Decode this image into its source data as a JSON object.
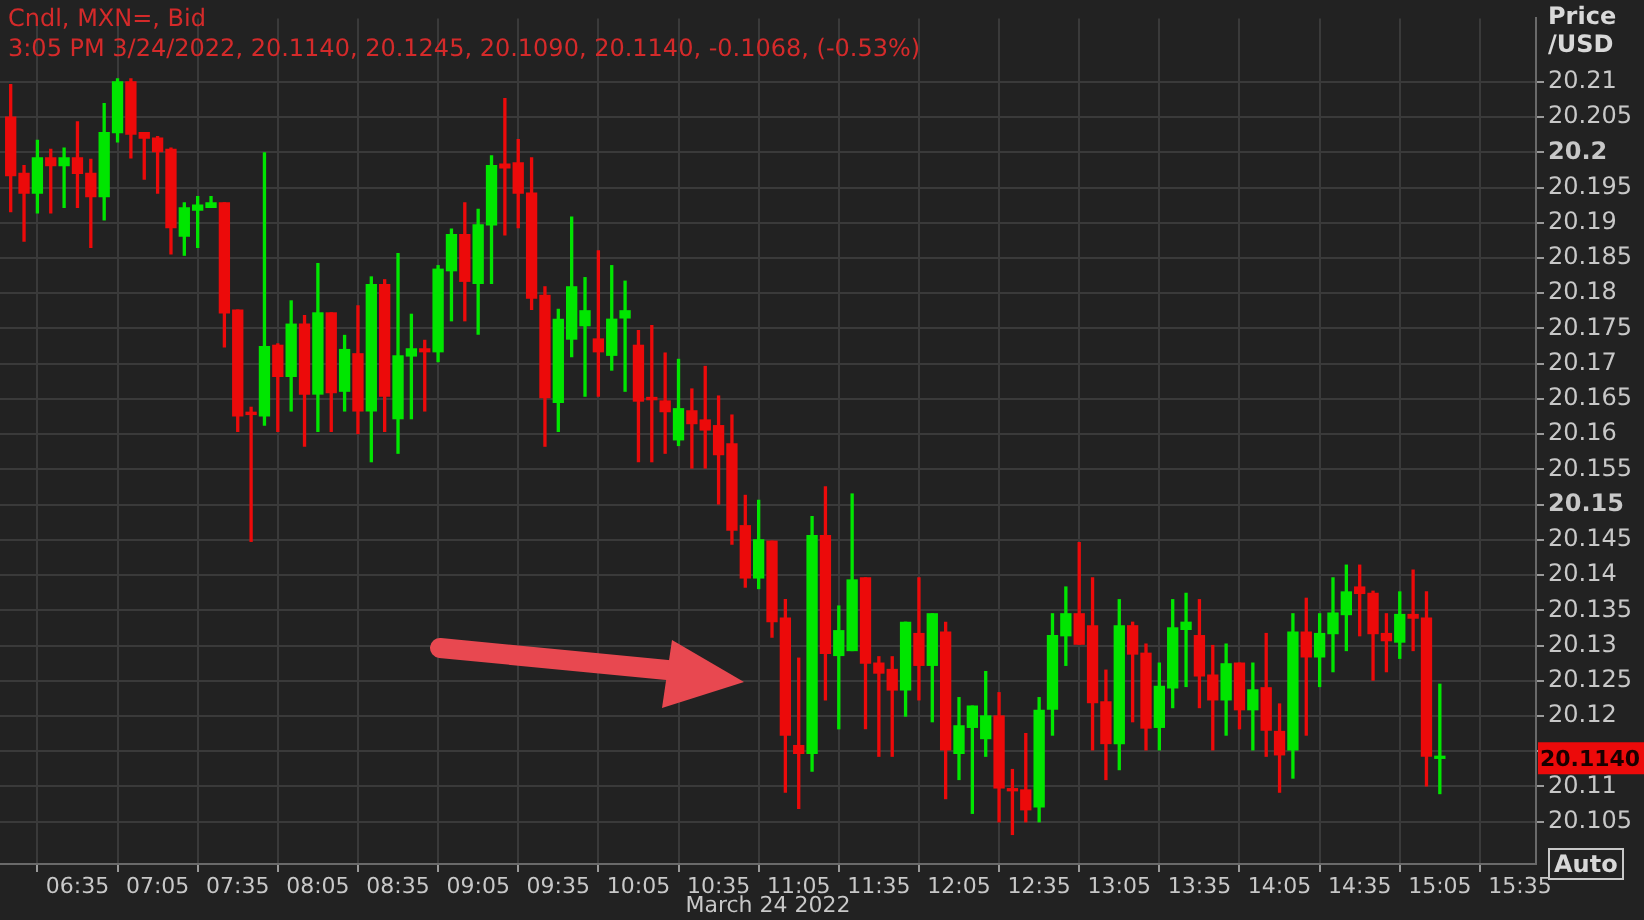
{
  "chart_data": {
    "type": "candlestick",
    "title": "Cndl, MXN=, Bid",
    "subtitle": "3:05 PM 3/24/2022, 20.1140, 20.1245, 20.1090, 20.1140, -0.1068, (-0.53%)",
    "xlabel": "March 24 2022",
    "ylabel": "Price /USD",
    "x": [
      "2022-03-24T06:10",
      "2022-03-24T06:15",
      "2022-03-24T06:20",
      "2022-03-24T06:25",
      "2022-03-24T06:30",
      "2022-03-24T06:35",
      "2022-03-24T06:40",
      "2022-03-24T06:45",
      "2022-03-24T06:50",
      "2022-03-24T06:55",
      "2022-03-24T07:00",
      "2022-03-24T07:05",
      "2022-03-24T07:10",
      "2022-03-24T07:15",
      "2022-03-24T07:20",
      "2022-03-24T07:25",
      "2022-03-24T07:30",
      "2022-03-24T07:35",
      "2022-03-24T07:40",
      "2022-03-24T07:45",
      "2022-03-24T07:50",
      "2022-03-24T07:55",
      "2022-03-24T08:00",
      "2022-03-24T08:05",
      "2022-03-24T08:10",
      "2022-03-24T08:15",
      "2022-03-24T08:20",
      "2022-03-24T08:25",
      "2022-03-24T08:30",
      "2022-03-24T08:35",
      "2022-03-24T08:40",
      "2022-03-24T08:45",
      "2022-03-24T08:50",
      "2022-03-24T08:55",
      "2022-03-24T09:00",
      "2022-03-24T09:05",
      "2022-03-24T09:10",
      "2022-03-24T09:15",
      "2022-03-24T09:20",
      "2022-03-24T09:25",
      "2022-03-24T09:30",
      "2022-03-24T09:35",
      "2022-03-24T09:40",
      "2022-03-24T09:45",
      "2022-03-24T09:50",
      "2022-03-24T09:55",
      "2022-03-24T10:00",
      "2022-03-24T10:05",
      "2022-03-24T10:10",
      "2022-03-24T10:15",
      "2022-03-24T10:20",
      "2022-03-24T10:25",
      "2022-03-24T10:30",
      "2022-03-24T10:35",
      "2022-03-24T10:40",
      "2022-03-24T10:45",
      "2022-03-24T10:50",
      "2022-03-24T10:55",
      "2022-03-24T11:00",
      "2022-03-24T11:05",
      "2022-03-24T11:10",
      "2022-03-24T11:15",
      "2022-03-24T11:20",
      "2022-03-24T11:25",
      "2022-03-24T11:30",
      "2022-03-24T11:35",
      "2022-03-24T11:40",
      "2022-03-24T11:45",
      "2022-03-24T11:50",
      "2022-03-24T11:55",
      "2022-03-24T12:00",
      "2022-03-24T12:05",
      "2022-03-24T12:10",
      "2022-03-24T12:15",
      "2022-03-24T12:20",
      "2022-03-24T12:25",
      "2022-03-24T12:30",
      "2022-03-24T12:35",
      "2022-03-24T12:40",
      "2022-03-24T12:45",
      "2022-03-24T12:50",
      "2022-03-24T12:55",
      "2022-03-24T13:00",
      "2022-03-24T13:05",
      "2022-03-24T13:10",
      "2022-03-24T13:15",
      "2022-03-24T13:20",
      "2022-03-24T13:25",
      "2022-03-24T13:30",
      "2022-03-24T13:35",
      "2022-03-24T13:40",
      "2022-03-24T13:45",
      "2022-03-24T13:50",
      "2022-03-24T13:55",
      "2022-03-24T14:00",
      "2022-03-24T14:05",
      "2022-03-24T14:10",
      "2022-03-24T14:15",
      "2022-03-24T14:20",
      "2022-03-24T14:25",
      "2022-03-24T14:30",
      "2022-03-24T14:35",
      "2022-03-24T14:40",
      "2022-03-24T14:45",
      "2022-03-24T14:50",
      "2022-03-24T14:55",
      "2022-03-24T15:00",
      "2022-03-24T15:05"
    ],
    "ohlc": [
      [
        20.205,
        20.2096,
        20.1916,
        20.1967
      ],
      [
        20.197,
        20.1981,
        20.1874,
        20.1942
      ],
      [
        20.1942,
        20.2017,
        20.1914,
        20.1992
      ],
      [
        20.1992,
        20.2004,
        20.1914,
        20.1981
      ],
      [
        20.1981,
        20.2006,
        20.1922,
        20.1992
      ],
      [
        20.1992,
        20.2043,
        20.1922,
        20.197
      ],
      [
        20.197,
        20.199,
        20.1865,
        20.1937
      ],
      [
        20.1937,
        20.2069,
        20.1904,
        20.2028
      ],
      [
        20.2028,
        20.2104,
        20.2015,
        20.21
      ],
      [
        20.21,
        20.2104,
        20.1992,
        20.2026
      ],
      [
        20.2028,
        20.2028,
        20.1962,
        20.202
      ],
      [
        20.202,
        20.2022,
        20.1942,
        20.2001
      ],
      [
        20.2004,
        20.2006,
        20.1856,
        20.1893
      ],
      [
        20.1881,
        20.1928,
        20.1854,
        20.1921
      ],
      [
        20.1918,
        20.1937,
        20.1865,
        20.1925
      ],
      [
        20.1922,
        20.1937,
        20.1922,
        20.1928
      ],
      [
        20.1928,
        20.1928,
        20.1724,
        20.1772
      ],
      [
        20.1776,
        20.1776,
        20.1604,
        20.1626
      ],
      [
        20.1631,
        20.1638,
        20.1448,
        20.1628
      ],
      [
        20.1626,
        20.1999,
        20.1613,
        20.1724
      ],
      [
        20.1726,
        20.1728,
        20.1604,
        20.1682
      ],
      [
        20.1682,
        20.1789,
        20.1633,
        20.1756
      ],
      [
        20.1756,
        20.1768,
        20.1583,
        20.1657
      ],
      [
        20.1657,
        20.1842,
        20.1604,
        20.1772
      ],
      [
        20.1772,
        20.1772,
        20.1604,
        20.1659
      ],
      [
        20.1661,
        20.174,
        20.1633,
        20.172
      ],
      [
        20.1714,
        20.1782,
        20.1601,
        20.1633
      ],
      [
        20.1633,
        20.1823,
        20.1561,
        20.1812
      ],
      [
        20.1812,
        20.1819,
        20.1604,
        20.1654
      ],
      [
        20.1622,
        20.1856,
        20.1573,
        20.1711
      ],
      [
        20.1711,
        20.177,
        20.1622,
        20.1721
      ],
      [
        20.1721,
        20.1733,
        20.1633,
        20.1717
      ],
      [
        20.1717,
        20.1839,
        20.1703,
        20.1834
      ],
      [
        20.1832,
        20.1891,
        20.1761,
        20.1883
      ],
      [
        20.1883,
        20.1928,
        20.1761,
        20.1817
      ],
      [
        20.1814,
        20.1919,
        20.1742,
        20.1897
      ],
      [
        20.1897,
        20.1995,
        20.1814,
        20.1981
      ],
      [
        20.1983,
        20.2076,
        20.1883,
        20.1978
      ],
      [
        20.1985,
        20.2018,
        20.1893,
        20.1942
      ],
      [
        20.1942,
        20.1992,
        20.1777,
        20.1793
      ],
      [
        20.1797,
        20.1809,
        20.1583,
        20.1652
      ],
      [
        20.1645,
        20.1777,
        20.1604,
        20.1763
      ],
      [
        20.1735,
        20.1908,
        20.171,
        20.1809
      ],
      [
        20.1754,
        20.1822,
        20.1654,
        20.1775
      ],
      [
        20.1735,
        20.186,
        20.1654,
        20.1717
      ],
      [
        20.1712,
        20.1839,
        20.1691,
        20.1763
      ],
      [
        20.1765,
        20.1817,
        20.1661,
        20.1775
      ],
      [
        20.1726,
        20.1747,
        20.1561,
        20.1647
      ],
      [
        20.1652,
        20.1754,
        20.1561,
        20.1649
      ],
      [
        20.1647,
        20.1715,
        20.1573,
        20.1632
      ],
      [
        20.1592,
        20.1706,
        20.1584,
        20.1636
      ],
      [
        20.1633,
        20.1664,
        20.1552,
        20.1615
      ],
      [
        20.162,
        20.1696,
        20.1552,
        20.1606
      ],
      [
        20.1612,
        20.1654,
        20.1501,
        20.1571
      ],
      [
        20.1586,
        20.1627,
        20.1444,
        20.1464
      ],
      [
        20.147,
        20.1513,
        20.1383,
        20.1396
      ],
      [
        20.1396,
        20.1506,
        20.1381,
        20.145
      ],
      [
        20.1448,
        20.1448,
        20.1312,
        20.1334
      ],
      [
        20.1339,
        20.1365,
        20.1092,
        20.1173
      ],
      [
        20.1158,
        20.1282,
        20.1069,
        20.1147
      ],
      [
        20.1147,
        20.1483,
        20.1122,
        20.1456
      ],
      [
        20.1456,
        20.1525,
        20.1223,
        20.1289
      ],
      [
        20.1286,
        20.1356,
        20.1182,
        20.1321
      ],
      [
        20.1293,
        20.1515,
        20.1293,
        20.1393
      ],
      [
        20.1396,
        20.1396,
        20.1182,
        20.1275
      ],
      [
        20.1275,
        20.1284,
        20.1143,
        20.1261
      ],
      [
        20.1266,
        20.1284,
        20.1143,
        20.1237
      ],
      [
        20.1237,
        20.1333,
        20.12,
        20.1333
      ],
      [
        20.1317,
        20.1396,
        20.1223,
        20.1272
      ],
      [
        20.1272,
        20.1345,
        20.1192,
        20.1345
      ],
      [
        20.1319,
        20.1333,
        20.1083,
        20.1152
      ],
      [
        20.1147,
        20.1226,
        20.111,
        20.1186
      ],
      [
        20.1184,
        20.1214,
        20.1062,
        20.1214
      ],
      [
        20.1168,
        20.1263,
        20.1143,
        20.12
      ],
      [
        20.12,
        20.1233,
        20.105,
        20.1098
      ],
      [
        20.1096,
        20.1124,
        20.1032,
        20.1094
      ],
      [
        20.1095,
        20.1175,
        20.105,
        20.1067
      ],
      [
        20.1071,
        20.1226,
        20.105,
        20.1208
      ],
      [
        20.121,
        20.1345,
        20.1173,
        20.1314
      ],
      [
        20.1314,
        20.1383,
        20.1272,
        20.1345
      ],
      [
        20.1345,
        20.1446,
        20.1302,
        20.1302
      ],
      [
        20.1328,
        20.1396,
        20.1152,
        20.1219
      ],
      [
        20.122,
        20.1265,
        20.111,
        20.1161
      ],
      [
        20.1161,
        20.1365,
        20.1124,
        20.1328
      ],
      [
        20.1328,
        20.1333,
        20.1192,
        20.1288
      ],
      [
        20.1289,
        20.1302,
        20.1152,
        20.1183
      ],
      [
        20.1184,
        20.1275,
        20.1152,
        20.1242
      ],
      [
        20.124,
        20.1365,
        20.1212,
        20.1325
      ],
      [
        20.1323,
        20.1374,
        20.1242,
        20.1333
      ],
      [
        20.1314,
        20.1365,
        20.1212,
        20.1257
      ],
      [
        20.1258,
        20.13,
        20.1152,
        20.1223
      ],
      [
        20.1223,
        20.1302,
        20.1173,
        20.1274
      ],
      [
        20.1275,
        20.1275,
        20.1182,
        20.1209
      ],
      [
        20.1209,
        20.1275,
        20.1152,
        20.1237
      ],
      [
        20.124,
        20.1317,
        20.1143,
        20.118
      ],
      [
        20.1178,
        20.1217,
        20.1092,
        20.1145
      ],
      [
        20.1152,
        20.1345,
        20.1112,
        20.1319
      ],
      [
        20.1319,
        20.1367,
        20.1173,
        20.1284
      ],
      [
        20.1284,
        20.1345,
        20.1242,
        20.1317
      ],
      [
        20.1317,
        20.1396,
        20.1263,
        20.1346
      ],
      [
        20.1344,
        20.1414,
        20.1293,
        20.1376
      ],
      [
        20.1383,
        20.1414,
        20.1314,
        20.1374
      ],
      [
        20.1374,
        20.1377,
        20.1251,
        20.1317
      ],
      [
        20.1317,
        20.1345,
        20.1263,
        20.1307
      ],
      [
        20.1305,
        20.1376,
        20.1282,
        20.1344
      ],
      [
        20.1344,
        20.1407,
        20.1293,
        20.1339
      ],
      [
        20.1339,
        20.1376,
        20.1101,
        20.1143
      ],
      [
        20.114,
        20.1245,
        20.109,
        20.114
      ]
    ],
    "xlim": [
      "2022-03-24T06:06",
      "2022-03-24T15:41"
    ],
    "xticks": [
      {
        "value": "2022-03-24T06:35",
        "label": "06:35"
      },
      {
        "value": "2022-03-24T07:05",
        "label": "07:05"
      },
      {
        "value": "2022-03-24T07:35",
        "label": "07:35"
      },
      {
        "value": "2022-03-24T08:05",
        "label": "08:05"
      },
      {
        "value": "2022-03-24T08:35",
        "label": "08:35"
      },
      {
        "value": "2022-03-24T09:05",
        "label": "09:05"
      },
      {
        "value": "2022-03-24T09:35",
        "label": "09:35"
      },
      {
        "value": "2022-03-24T10:05",
        "label": "10:05"
      },
      {
        "value": "2022-03-24T10:35",
        "label": "10:35"
      },
      {
        "value": "2022-03-24T11:05",
        "label": "11:05"
      },
      {
        "value": "2022-03-24T11:35",
        "label": "11:35"
      },
      {
        "value": "2022-03-24T12:05",
        "label": "12:05"
      },
      {
        "value": "2022-03-24T12:35",
        "label": "12:35"
      },
      {
        "value": "2022-03-24T13:05",
        "label": "13:05"
      },
      {
        "value": "2022-03-24T13:35",
        "label": "13:35"
      },
      {
        "value": "2022-03-24T14:05",
        "label": "14:05"
      },
      {
        "value": "2022-03-24T14:35",
        "label": "14:35"
      },
      {
        "value": "2022-03-24T15:05",
        "label": "15:05"
      },
      {
        "value": "2022-03-24T15:35",
        "label": "15:35"
      }
    ],
    "ylim": [
      20.099,
      20.219
    ],
    "yticks": [
      20.105,
      20.11,
      {
        "value": 20.115,
        "label": null
      },
      20.12,
      20.125,
      20.13,
      20.135,
      20.14,
      20.145,
      20.15,
      20.155,
      20.16,
      20.165,
      20.17,
      20.175,
      20.18,
      20.185,
      20.19,
      20.195,
      20.2,
      20.205,
      20.21
    ],
    "annotations": [
      "20.1140",
      "Auto"
    ],
    "grid": true,
    "legend": false
  }
}
